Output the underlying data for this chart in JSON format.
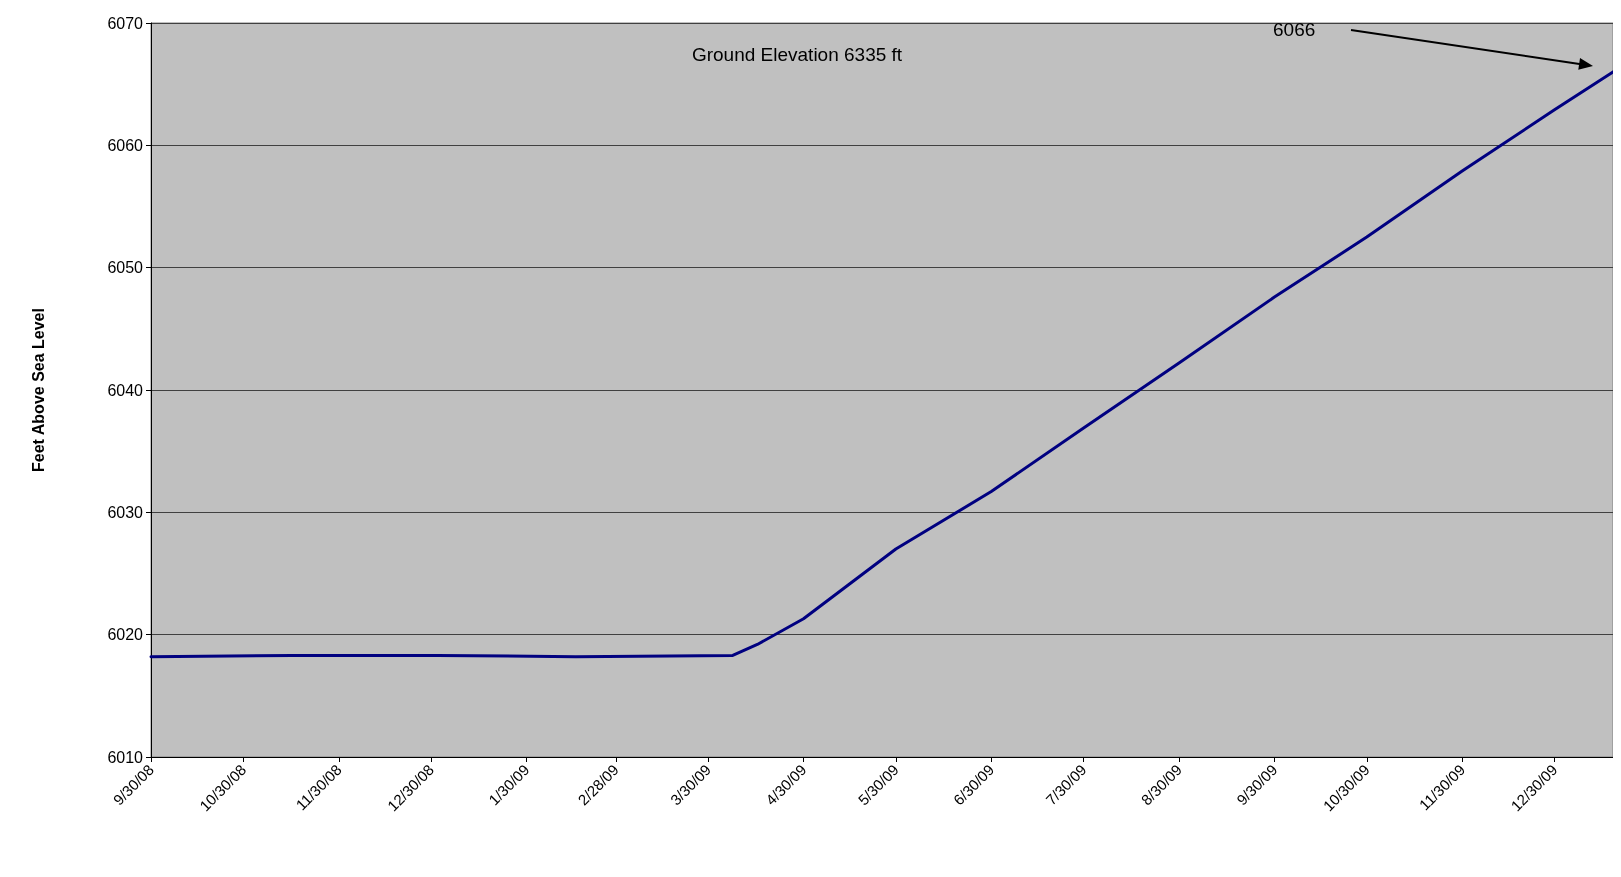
{
  "chart_data": {
    "type": "line",
    "ylabel": "Feet Above Sea Level",
    "x": [
      "2008-09-30",
      "2008-11-15",
      "2009-01-01",
      "2009-02-15",
      "2009-04-07",
      "2009-04-15",
      "2009-04-30",
      "2009-05-30",
      "2009-06-30",
      "2009-07-30",
      "2009-08-30",
      "2009-09-30",
      "2009-10-30",
      "2009-11-30",
      "2009-12-30",
      "2010-01-18"
    ],
    "series": [
      {
        "color": "#000080",
        "values": [
          6018.2,
          6018.3,
          6018.3,
          6018.2,
          6018.3,
          6019.2,
          6021.3,
          6027.0,
          6031.7,
          6036.9,
          6042.2,
          6047.6,
          6052.5,
          6057.9,
          6062.9,
          6066
        ]
      }
    ],
    "xlim": [
      "2008-09-30",
      "2010-01-18"
    ],
    "xticks": [
      {
        "value": "2008-09-30",
        "label": "9/30/08"
      },
      {
        "value": "2008-10-30",
        "label": "10/30/08"
      },
      {
        "value": "2008-11-30",
        "label": "11/30/08"
      },
      {
        "value": "2008-12-30",
        "label": "12/30/08"
      },
      {
        "value": "2009-01-30",
        "label": "1/30/09"
      },
      {
        "value": "2009-02-28",
        "label": "2/28/09"
      },
      {
        "value": "2009-03-30",
        "label": "3/30/09"
      },
      {
        "value": "2009-04-30",
        "label": "4/30/09"
      },
      {
        "value": "2009-05-30",
        "label": "5/30/09"
      },
      {
        "value": "2009-06-30",
        "label": "6/30/09"
      },
      {
        "value": "2009-07-30",
        "label": "7/30/09"
      },
      {
        "value": "2009-08-30",
        "label": "8/30/09"
      },
      {
        "value": "2009-09-30",
        "label": "9/30/09"
      },
      {
        "value": "2009-10-30",
        "label": "10/30/09"
      },
      {
        "value": "2009-11-30",
        "label": "11/30/09"
      },
      {
        "value": "2009-12-30",
        "label": "12/30/09"
      }
    ],
    "ylim": [
      6010,
      6070
    ],
    "yticks": [
      6010,
      6020,
      6030,
      6040,
      6050,
      6060,
      6070
    ],
    "grid": "y",
    "marker": "none",
    "line_style": "solid",
    "annotations": [
      "Ground Elevation 6335 ft",
      "6066"
    ]
  }
}
